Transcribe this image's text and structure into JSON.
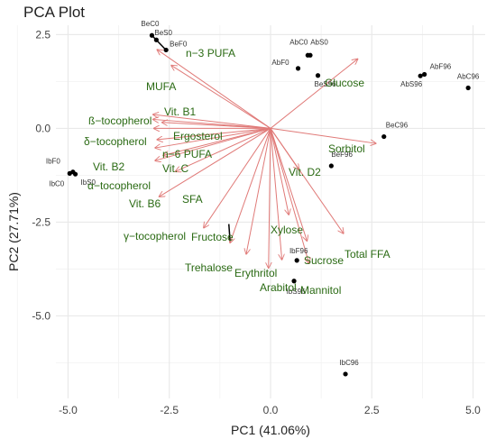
{
  "chart_data": {
    "type": "scatter",
    "title": "PCA Plot",
    "xlabel": "PC1 (41.06%)",
    "ylabel": "PC2 (27.71%)",
    "xlim": [
      -5.3,
      5.3
    ],
    "ylim": [
      -7.2,
      2.75
    ],
    "xticks": [
      -5.0,
      -2.5,
      0.0,
      2.5,
      5.0
    ],
    "yticks": [
      2.5,
      0.0,
      -2.5,
      -5.0
    ],
    "xtick_labels": [
      "-5.0",
      "-2.5",
      "0.0",
      "2.5",
      "5.0"
    ],
    "ytick_labels": [
      "2.5",
      "0.0",
      "-2.5",
      "-5.0"
    ],
    "grid": true,
    "colors": {
      "point": "#000000",
      "arrow": "#e07a78",
      "variable_label": "#2a6a13",
      "grid": "#e9e9e9",
      "point_label": "#333333"
    },
    "points": [
      {
        "label": "BeC0",
        "x": -2.93,
        "y": 2.48
      },
      {
        "label": "BeS0",
        "x": -2.82,
        "y": 2.36
      },
      {
        "label": "BeF0",
        "x": -2.58,
        "y": 2.09
      },
      {
        "label": "AbC0",
        "x": 0.92,
        "y": 1.95
      },
      {
        "label": "AbS0",
        "x": 0.98,
        "y": 1.95
      },
      {
        "label": "AbF0",
        "x": 0.68,
        "y": 1.6
      },
      {
        "label": "BeS96",
        "x": 1.17,
        "y": 1.41
      },
      {
        "label": "AbF96",
        "x": 3.8,
        "y": 1.44
      },
      {
        "label": "AbS96",
        "x": 3.7,
        "y": 1.4
      },
      {
        "label": "AbC96",
        "x": 4.88,
        "y": 1.08
      },
      {
        "label": "BeC96",
        "x": 2.8,
        "y": -0.22
      },
      {
        "label": "BeF96",
        "x": 1.5,
        "y": -1.0
      },
      {
        "label": "IbF0",
        "x": -4.88,
        "y": -1.16
      },
      {
        "label": "IbC0",
        "x": -4.96,
        "y": -1.2
      },
      {
        "label": "IbS0",
        "x": -4.82,
        "y": -1.22
      },
      {
        "label": "IbF96",
        "x": 0.65,
        "y": -3.52
      },
      {
        "label": "IbS96",
        "x": 0.58,
        "y": -4.07
      },
      {
        "label": "IbC96",
        "x": 1.85,
        "y": -6.55
      }
    ],
    "loadings": [
      {
        "label": "n−3 PUFA",
        "x": -2.8,
        "y": 2.1
      },
      {
        "label": "MUFA",
        "x": -2.45,
        "y": 1.68
      },
      {
        "label": "Vit. B1",
        "x": -2.9,
        "y": 0.37
      },
      {
        "label": "ß−tocopherol",
        "x": -2.9,
        "y": 0.24
      },
      {
        "label": "Ergosterol",
        "x": -2.68,
        "y": 0.16
      },
      {
        "label": "δ−tocopherol",
        "x": -2.88,
        "y": 0.0
      },
      {
        "label": "n−6 PUFA",
        "x": -2.8,
        "y": -0.3
      },
      {
        "label": "Vit. B2",
        "x": -2.85,
        "y": -0.52
      },
      {
        "label": "Vit. C",
        "x": -2.65,
        "y": -0.72
      },
      {
        "label": "α−tocopherol",
        "x": -2.85,
        "y": -0.86
      },
      {
        "label": "SFA",
        "x": -2.35,
        "y": -1.15
      },
      {
        "label": "Vit. B6",
        "x": -2.75,
        "y": -1.82
      },
      {
        "label": "γ−tocopherol",
        "x": -1.65,
        "y": -2.65
      },
      {
        "label": "Fructose",
        "x": -1.0,
        "y": -3.05
      },
      {
        "label": "Trehalose",
        "x": -0.6,
        "y": -3.35
      },
      {
        "label": "Erythritol",
        "x": 0.28,
        "y": -3.5
      },
      {
        "label": "Arabitol",
        "x": -0.05,
        "y": -3.72
      },
      {
        "label": "Mannitol",
        "x": 0.95,
        "y": -3.6
      },
      {
        "label": "Xylose",
        "x": 0.45,
        "y": -2.3
      },
      {
        "label": "Sucrose",
        "x": 0.9,
        "y": -3.0
      },
      {
        "label": "Total FFA",
        "x": 1.8,
        "y": -2.8
      },
      {
        "label": "Vit. D2",
        "x": 0.7,
        "y": -1.1
      },
      {
        "label": "Sorbitol",
        "x": 2.6,
        "y": -0.4
      },
      {
        "label": "Glucose",
        "x": 2.15,
        "y": 1.85
      }
    ]
  }
}
